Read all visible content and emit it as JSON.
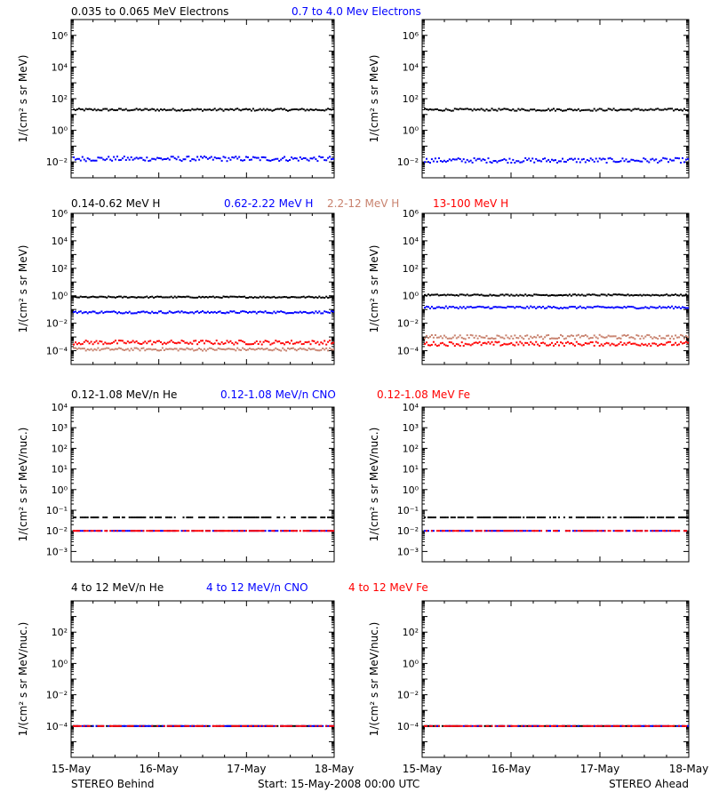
{
  "colors": {
    "black": "#000000",
    "blue": "#0000ff",
    "tan": "#c8826e",
    "red": "#ff0000"
  },
  "chart_data": [
    {
      "type": "scatter",
      "ylabel": "1/(cm² s sr MeV)",
      "yscale": "log",
      "ylim_exp": [
        -3,
        7
      ],
      "ytick_labels": [
        "10⁻²",
        "10⁰",
        "10²",
        "10⁴",
        "10⁶"
      ],
      "legend": [
        "0.035 to 0.065 MeV Electrons",
        "0.7 to 4.0 Mev Electrons"
      ],
      "panels": [
        {
          "spacecraft": "STEREO Behind",
          "series": [
            {
              "name": "0.035 to 0.065 MeV Electrons",
              "color": "black",
              "level_exp": 1.3,
              "spread": 0.07
            },
            {
              "name": "0.7 to 4.0 Mev Electrons",
              "color": "blue",
              "level_exp": -1.8,
              "spread": 0.15
            }
          ]
        },
        {
          "spacecraft": "STEREO Ahead",
          "series": [
            {
              "name": "0.035 to 0.065 MeV Electrons",
              "color": "black",
              "level_exp": 1.3,
              "spread": 0.07
            },
            {
              "name": "0.7 to 4.0 Mev Electrons",
              "color": "blue",
              "level_exp": -1.9,
              "spread": 0.15
            }
          ]
        }
      ]
    },
    {
      "type": "scatter",
      "ylabel": "1/(cm² s sr MeV)",
      "yscale": "log",
      "ylim_exp": [
        -5,
        6
      ],
      "ytick_labels": [
        "10⁻⁴",
        "10⁻²",
        "10⁰",
        "10²",
        "10⁴",
        "10⁶"
      ],
      "legend": [
        "0.14-0.62 MeV H",
        "0.62-2.22 MeV H",
        "2.2-12 MeV H",
        "13-100 MeV H"
      ],
      "panels": [
        {
          "spacecraft": "STEREO Behind",
          "series": [
            {
              "name": "0.14-0.62 MeV H",
              "color": "black",
              "level_exp": -0.1,
              "spread": 0.05
            },
            {
              "name": "0.62-2.22 MeV H",
              "color": "blue",
              "level_exp": -1.2,
              "spread": 0.08
            },
            {
              "name": "2.2-12 MeV H",
              "color": "tan",
              "level_exp": -3.9,
              "spread": 0.1
            },
            {
              "name": "13-100 MeV H",
              "color": "red",
              "level_exp": -3.4,
              "spread": 0.15
            }
          ]
        },
        {
          "spacecraft": "STEREO Ahead",
          "series": [
            {
              "name": "0.14-0.62 MeV H",
              "color": "black",
              "level_exp": 0.05,
              "spread": 0.05
            },
            {
              "name": "0.62-2.22 MeV H",
              "color": "blue",
              "level_exp": -0.85,
              "spread": 0.08
            },
            {
              "name": "2.2-12 MeV H",
              "color": "tan",
              "level_exp": -3.0,
              "spread": 0.15
            },
            {
              "name": "13-100 MeV H",
              "color": "red",
              "level_exp": -3.5,
              "spread": 0.15
            }
          ]
        }
      ]
    },
    {
      "type": "scatter",
      "ylabel": "1/(cm² s sr MeV/nuc.)",
      "yscale": "log",
      "ylim_exp": [
        -3.5,
        4
      ],
      "ytick_labels": [
        "10⁻³",
        "10⁻²",
        "10⁻¹",
        "10⁰",
        "10¹",
        "10²",
        "10³",
        "10⁴"
      ],
      "legend": [
        "0.12-1.08 MeV/n He",
        "0.12-1.08 MeV/n CNO",
        "0.12-1.08 MeV Fe"
      ],
      "panels": [
        {
          "spacecraft": "STEREO Behind",
          "series": [
            {
              "name": "0.12-1.08 MeV/n He",
              "color": "black",
              "level_exp": -1.35,
              "spread": 0.0
            },
            {
              "name": "0.12-1.08 MeV/n CNO",
              "color": "blue",
              "level_exp": -2.0,
              "spread": 0.0
            },
            {
              "name": "0.12-1.08 MeV Fe",
              "color": "red",
              "level_exp": -2.0,
              "spread": 0.0
            }
          ]
        },
        {
          "spacecraft": "STEREO Ahead",
          "series": [
            {
              "name": "0.12-1.08 MeV/n He",
              "color": "black",
              "level_exp": -1.35,
              "spread": 0.0
            },
            {
              "name": "0.12-1.08 MeV/n CNO",
              "color": "blue",
              "level_exp": -2.0,
              "spread": 0.0
            },
            {
              "name": "0.12-1.08 MeV Fe",
              "color": "red",
              "level_exp": -2.0,
              "spread": 0.0
            }
          ]
        }
      ]
    },
    {
      "type": "scatter",
      "ylabel": "1/(cm² s sr MeV/nuc.)",
      "yscale": "log",
      "ylim_exp": [
        -6,
        4
      ],
      "ytick_labels": [
        "10⁻⁴",
        "10⁻²",
        "10⁰",
        "10²"
      ],
      "legend": [
        "4 to 12 MeV/n He",
        "4 to 12 MeV/n CNO",
        "4 to 12 MeV Fe"
      ],
      "panels": [
        {
          "spacecraft": "STEREO Behind",
          "series": [
            {
              "name": "4 to 12 MeV/n He",
              "color": "black",
              "level_exp": -4.0,
              "spread": 0.0
            },
            {
              "name": "4 to 12 MeV/n CNO",
              "color": "blue",
              "level_exp": -4.0,
              "spread": 0.0
            },
            {
              "name": "4 to 12 MeV Fe",
              "color": "red",
              "level_exp": -4.0,
              "spread": 0.0
            }
          ]
        },
        {
          "spacecraft": "STEREO Ahead",
          "series": [
            {
              "name": "4 to 12 MeV/n He",
              "color": "black",
              "level_exp": -4.0,
              "spread": 0.0
            },
            {
              "name": "4 to 12 MeV/n CNO",
              "color": "blue",
              "level_exp": -4.0,
              "spread": 0.0
            },
            {
              "name": "4 to 12 MeV Fe",
              "color": "red",
              "level_exp": -4.0,
              "spread": 0.0
            }
          ]
        }
      ]
    }
  ],
  "x_axis": {
    "tick_labels": [
      "15-May",
      "16-May",
      "17-May",
      "18-May"
    ],
    "range_days": [
      0,
      3
    ]
  },
  "footer": {
    "left": "STEREO Behind",
    "center": "Start: 15-May-2008 00:00 UTC",
    "right": "STEREO Ahead"
  }
}
